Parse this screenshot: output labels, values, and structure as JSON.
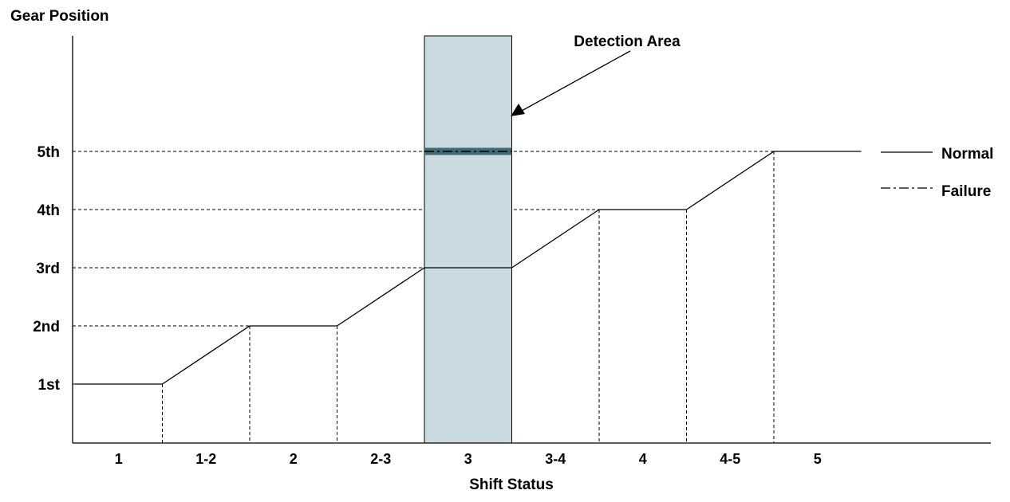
{
  "chart_data": {
    "type": "line",
    "y_title": "Gear Position",
    "x_title": "Shift Status",
    "y_levels": [
      "1st",
      "2nd",
      "3rd",
      "4th",
      "5th"
    ],
    "categories": [
      "1",
      "1-2",
      "2",
      "2-3",
      "3",
      "3-4",
      "4",
      "4-5",
      "5"
    ],
    "series": [
      {
        "name": "Normal",
        "style": "solid",
        "points": [
          [
            0,
            1
          ],
          [
            1,
            1
          ],
          [
            2,
            2
          ],
          [
            3,
            2
          ],
          [
            4,
            3
          ],
          [
            5,
            3
          ],
          [
            6,
            4
          ],
          [
            7,
            4
          ],
          [
            8,
            5
          ],
          [
            9,
            5
          ]
        ]
      },
      {
        "name": "Failure",
        "style": "dash-dot",
        "points": [
          [
            4,
            5
          ],
          [
            5,
            5
          ]
        ]
      }
    ],
    "annotation": {
      "text": "Detection Area",
      "span": [
        4,
        5
      ]
    },
    "grid": "dashed reference lines at each gear level and at each shift boundary",
    "legend_position": "right",
    "colors": {
      "detection_area_fill": "#cbd9e1",
      "failure_band": "#3f6a72",
      "line": "#000000"
    }
  }
}
